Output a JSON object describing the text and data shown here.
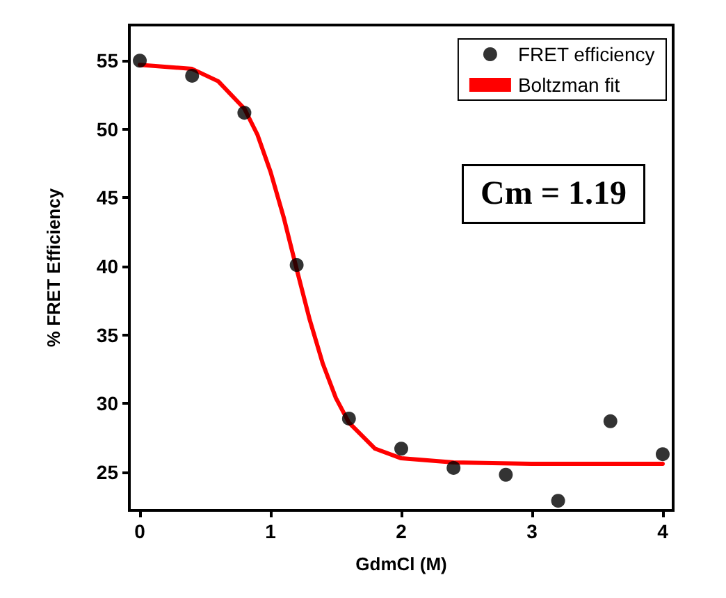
{
  "chart_data": {
    "type": "scatter",
    "xlabel": "GdmCl (M)",
    "ylabel": "% FRET Efficiency",
    "xlim": [
      -0.08,
      4.08
    ],
    "ylim": [
      22.2,
      57.6
    ],
    "xticks": [
      0,
      1,
      2,
      3,
      4
    ],
    "yticks": [
      25,
      30,
      35,
      40,
      45,
      50,
      55
    ],
    "grid": false,
    "legend": "top right",
    "annotations": [
      "Cm = 1.19"
    ],
    "series": [
      {
        "name": "FRET efficiency",
        "marker": "circle",
        "color": "#000000",
        "x": [
          0,
          0.4,
          0.8,
          1.2,
          1.6,
          2.0,
          2.4,
          2.8,
          3.2,
          3.6,
          4.0
        ],
        "values": [
          55,
          53.9,
          51.2,
          40.1,
          28.9,
          26.7,
          25.3,
          24.8,
          22.9,
          28.7,
          26.3
        ]
      },
      {
        "name": "Boltzman fit",
        "type": "line",
        "marker": "none",
        "line_style": "solid",
        "color": "#ff0000",
        "x": [
          0,
          0.4,
          0.6,
          0.8,
          0.9,
          1.0,
          1.1,
          1.2,
          1.3,
          1.4,
          1.5,
          1.6,
          1.8,
          2.0,
          2.4,
          3.0,
          4.0
        ],
        "values": [
          54.7,
          54.4,
          53.5,
          51.5,
          49.6,
          46.9,
          43.6,
          39.8,
          36.1,
          32.9,
          30.4,
          28.6,
          26.7,
          26.0,
          25.7,
          25.6,
          25.6
        ]
      }
    ]
  }
}
